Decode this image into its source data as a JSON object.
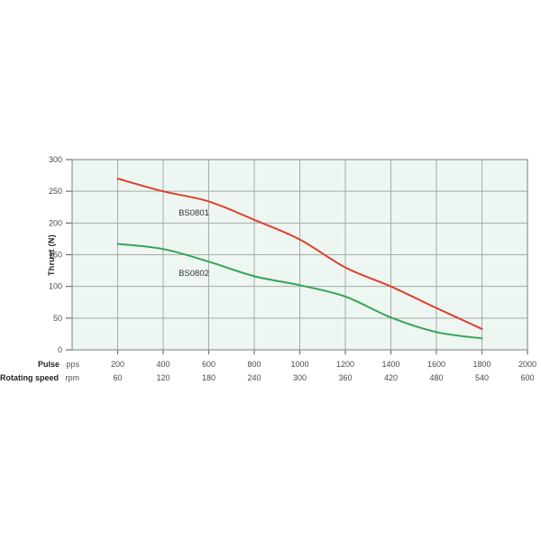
{
  "page": {
    "background_color": "#ffffff"
  },
  "chart_data": {
    "type": "line",
    "title": "",
    "ylabel": "Thrust (N)",
    "ylim": [
      0,
      300
    ],
    "yticks": [
      0,
      50,
      100,
      150,
      200,
      250,
      300
    ],
    "xlim": [
      0,
      2000
    ],
    "grid": true,
    "legend_position": "inline-labels-on-curves",
    "plot_bg_color": "#eef6f1",
    "grid_color": "#a6aaa8",
    "border_color": "#8f9693",
    "tick_color": "#6f6f6f",
    "x_axis_rows": [
      {
        "label": "Pulse",
        "unit": "pps",
        "ticks": [
          200,
          400,
          600,
          800,
          1000,
          1200,
          1400,
          1600,
          1800,
          2000
        ]
      },
      {
        "label": "Rotating speed",
        "unit": "rpm",
        "ticks": [
          60,
          120,
          180,
          240,
          300,
          360,
          420,
          480,
          540,
          600
        ]
      }
    ],
    "x": [
      200,
      400,
      600,
      800,
      1000,
      1200,
      1400,
      1600,
      1800
    ],
    "series": [
      {
        "name": "BS0801",
        "color": "#e23c2d",
        "values": [
          270,
          250,
          234,
          205,
          174,
          130,
          100,
          66,
          33
        ]
      },
      {
        "name": "BS0802",
        "color": "#35a457",
        "values": [
          167,
          159,
          139,
          116,
          102,
          84,
          51,
          28,
          18
        ]
      }
    ]
  }
}
